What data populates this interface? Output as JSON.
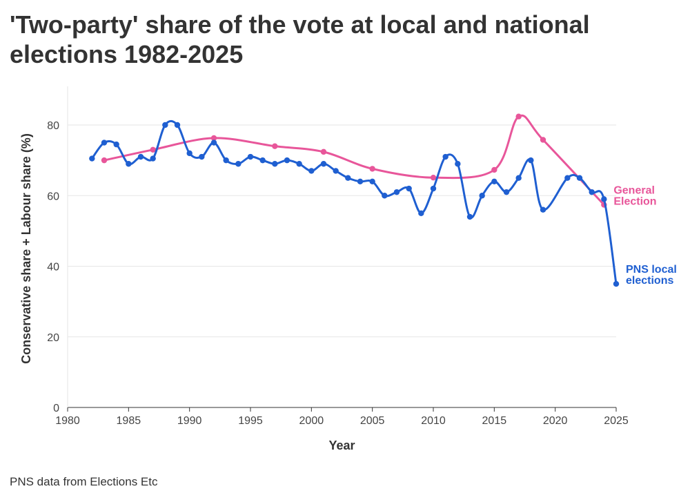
{
  "title": "'Two-party' share of the vote at local and national elections 1982-2025",
  "caption": "PNS data from Elections Etc",
  "colors": {
    "local": "#1f5fd1",
    "general": "#e8569a",
    "grid": "#e6e6e6",
    "axis": "#333333"
  },
  "chart_data": {
    "type": "line",
    "title": "'Two-party' share of the vote at local and national elections 1982-2025",
    "xlabel": "Year",
    "ylabel": "Conservative share + Labour share (%)",
    "xlim": [
      1980,
      2025
    ],
    "ylim": [
      0,
      90
    ],
    "xticks": [
      1980,
      1985,
      1990,
      1995,
      2000,
      2005,
      2010,
      2015,
      2020,
      2025
    ],
    "yticks": [
      0,
      20,
      40,
      60,
      80
    ],
    "grid": true,
    "series": [
      {
        "name": "PNS local elections",
        "label_lines": [
          "PNS local",
          "elections"
        ],
        "color_key": "local",
        "x": [
          1982,
          1983,
          1984,
          1985,
          1986,
          1987,
          1988,
          1989,
          1990,
          1991,
          1992,
          1993,
          1994,
          1995,
          1996,
          1997,
          1998,
          1999,
          2000,
          2001,
          2002,
          2003,
          2004,
          2005,
          2006,
          2007,
          2008,
          2009,
          2010,
          2011,
          2012,
          2013,
          2014,
          2015,
          2016,
          2017,
          2018,
          2019,
          2021,
          2022,
          2023,
          2024,
          2025
        ],
        "y": [
          70.5,
          75,
          74.5,
          69,
          71,
          70.5,
          80,
          80,
          72,
          71,
          75,
          70,
          69,
          71,
          70,
          69,
          70,
          69,
          67,
          69,
          67,
          65,
          64,
          64,
          60,
          61,
          62,
          55,
          62,
          71,
          69,
          54,
          60,
          64,
          61,
          65,
          70,
          56,
          65,
          65,
          61,
          59,
          35
        ]
      },
      {
        "name": "General Election",
        "label_lines": [
          "General",
          "Election"
        ],
        "color_key": "general",
        "x": [
          1983,
          1987,
          1992,
          1997,
          2001,
          2005,
          2010,
          2015,
          2017,
          2019,
          2024
        ],
        "y": [
          70,
          73,
          76.3,
          74,
          72.4,
          67.6,
          65.1,
          67.3,
          82.4,
          75.8,
          57.4
        ]
      }
    ]
  }
}
